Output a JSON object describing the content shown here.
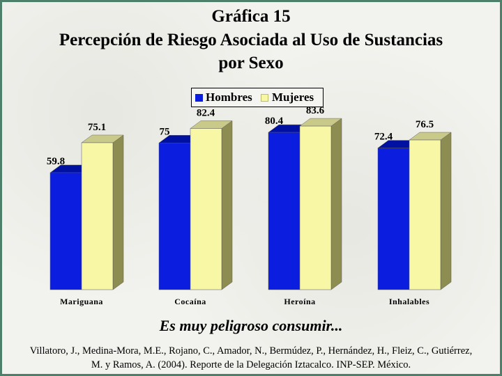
{
  "title_lines": [
    "Gráfica 15",
    "Percepción de Riesgo Asociada al Uso de Sustancias",
    "por Sexo"
  ],
  "subtitle": "Es muy peligroso consumir...",
  "citation": "Villatoro, J., Medina-Mora, M.E., Rojano, C., Amador, N., Bermúdez, P., Hernández, H., Fleiz, C., Gutiérrez, M. y Ramos, A. (2004). Reporte de la Delegación Iztacalco. INP-SEP. México.",
  "colors": {
    "hombres": "#0b1ee0",
    "mujeres": "#f7f7a6",
    "frame": "#4e7f6a"
  },
  "chart_data": {
    "type": "bar",
    "categories": [
      "Mariguana",
      "Cocaína",
      "Heroína",
      "Inhalables"
    ],
    "series": [
      {
        "name": "Hombres",
        "values": [
          59.8,
          75,
          80.4,
          72.4
        ]
      },
      {
        "name": "Mujeres",
        "values": [
          75.1,
          82.4,
          83.6,
          76.5
        ]
      }
    ],
    "value_labels": [
      [
        "59.8",
        "75.1"
      ],
      [
        "75",
        "82.4"
      ],
      [
        "80.4",
        "83.6"
      ],
      [
        "72.4",
        "76.5"
      ]
    ],
    "ylim": [
      0,
      100
    ],
    "legend_position": "top-center",
    "grid": false
  }
}
